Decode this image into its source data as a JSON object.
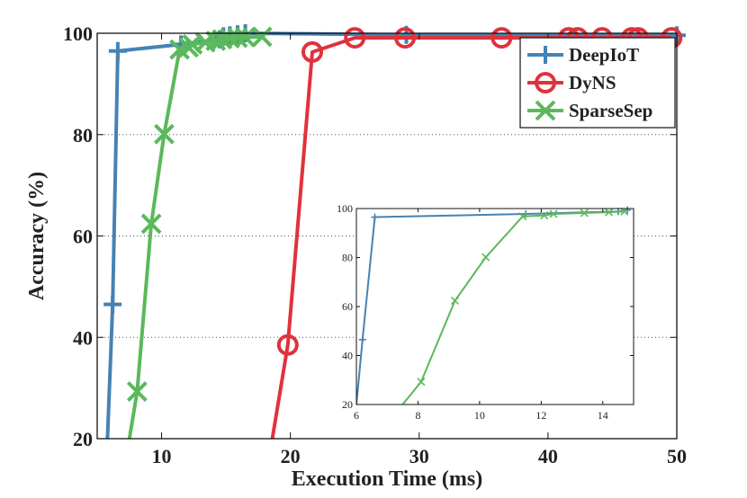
{
  "chart_data": [
    {
      "type": "line",
      "title": "",
      "xlabel": "Execution Time (ms)",
      "ylabel": "Accuracy (%)",
      "xlim": [
        5,
        50
      ],
      "ylim": [
        20,
        100
      ],
      "xticks": [
        10,
        20,
        30,
        40,
        50
      ],
      "yticks": [
        20,
        40,
        60,
        80,
        100
      ],
      "grid": "dotted",
      "legend_position": "top-right",
      "series": [
        {
          "name": "DeepIoT",
          "color": "#4682b4",
          "marker": "plus",
          "x": [
            5.8,
            6.2,
            6.6,
            11.5,
            14.5,
            14.8,
            15.3,
            15.9,
            16.5,
            29,
            50
          ],
          "y": [
            20,
            46.5,
            96.5,
            97.8,
            98.8,
            99.4,
            99.6,
            99.8,
            100,
            99.7,
            99.6
          ]
        },
        {
          "name": "DyNS",
          "color": "#e0323c",
          "marker": "circle",
          "x": [
            18.6,
            19.8,
            21.7,
            25,
            28.9,
            36.4,
            41.6,
            42.3,
            44.2,
            46.5,
            47,
            49.6
          ],
          "y": [
            20,
            38.5,
            96.3,
            99.1,
            99.1,
            99.1,
            99.1,
            99.1,
            99.1,
            99.1,
            99.1,
            99.1
          ],
          "markers_at": [
            19.8,
            21.7,
            25,
            28.9,
            36.4,
            41.6,
            42.3,
            44.2,
            46.5,
            47,
            49.6
          ]
        },
        {
          "name": "SparseSep",
          "color": "#5cb85c",
          "marker": "x",
          "x": [
            7.5,
            8.1,
            9.2,
            10.2,
            11.4,
            12.1,
            12.4,
            13.4,
            14.2,
            14.7,
            15.3,
            15.9,
            16.5,
            17.8
          ],
          "y": [
            20,
            29.3,
            62.4,
            80.1,
            96.8,
            97.2,
            97.8,
            98.2,
            98.5,
            98.8,
            99,
            99.1,
            99.2,
            99.3
          ]
        }
      ]
    },
    {
      "type": "line",
      "title": "",
      "role": "inset-zoom",
      "xlim": [
        6,
        15
      ],
      "ylim": [
        20,
        100
      ],
      "xticks": [
        6,
        8,
        10,
        12,
        14
      ],
      "yticks": [
        20,
        40,
        60,
        80,
        100
      ],
      "series": [
        {
          "name": "DeepIoT",
          "color": "#4682b4",
          "marker": "plus",
          "x": [
            6,
            6.2,
            6.6,
            11.5,
            14.5,
            14.8
          ],
          "y": [
            20,
            46.5,
            96.5,
            97.8,
            98.8,
            99.4
          ]
        },
        {
          "name": "SparseSep",
          "color": "#5cb85c",
          "marker": "x",
          "x": [
            7.5,
            8.1,
            9.2,
            10.2,
            11.4,
            12.1,
            12.4,
            13.4,
            14.2,
            14.7
          ],
          "y": [
            20,
            29.3,
            62.4,
            80.1,
            96.8,
            97.2,
            97.8,
            98.2,
            98.5,
            98.8
          ]
        }
      ]
    }
  ]
}
